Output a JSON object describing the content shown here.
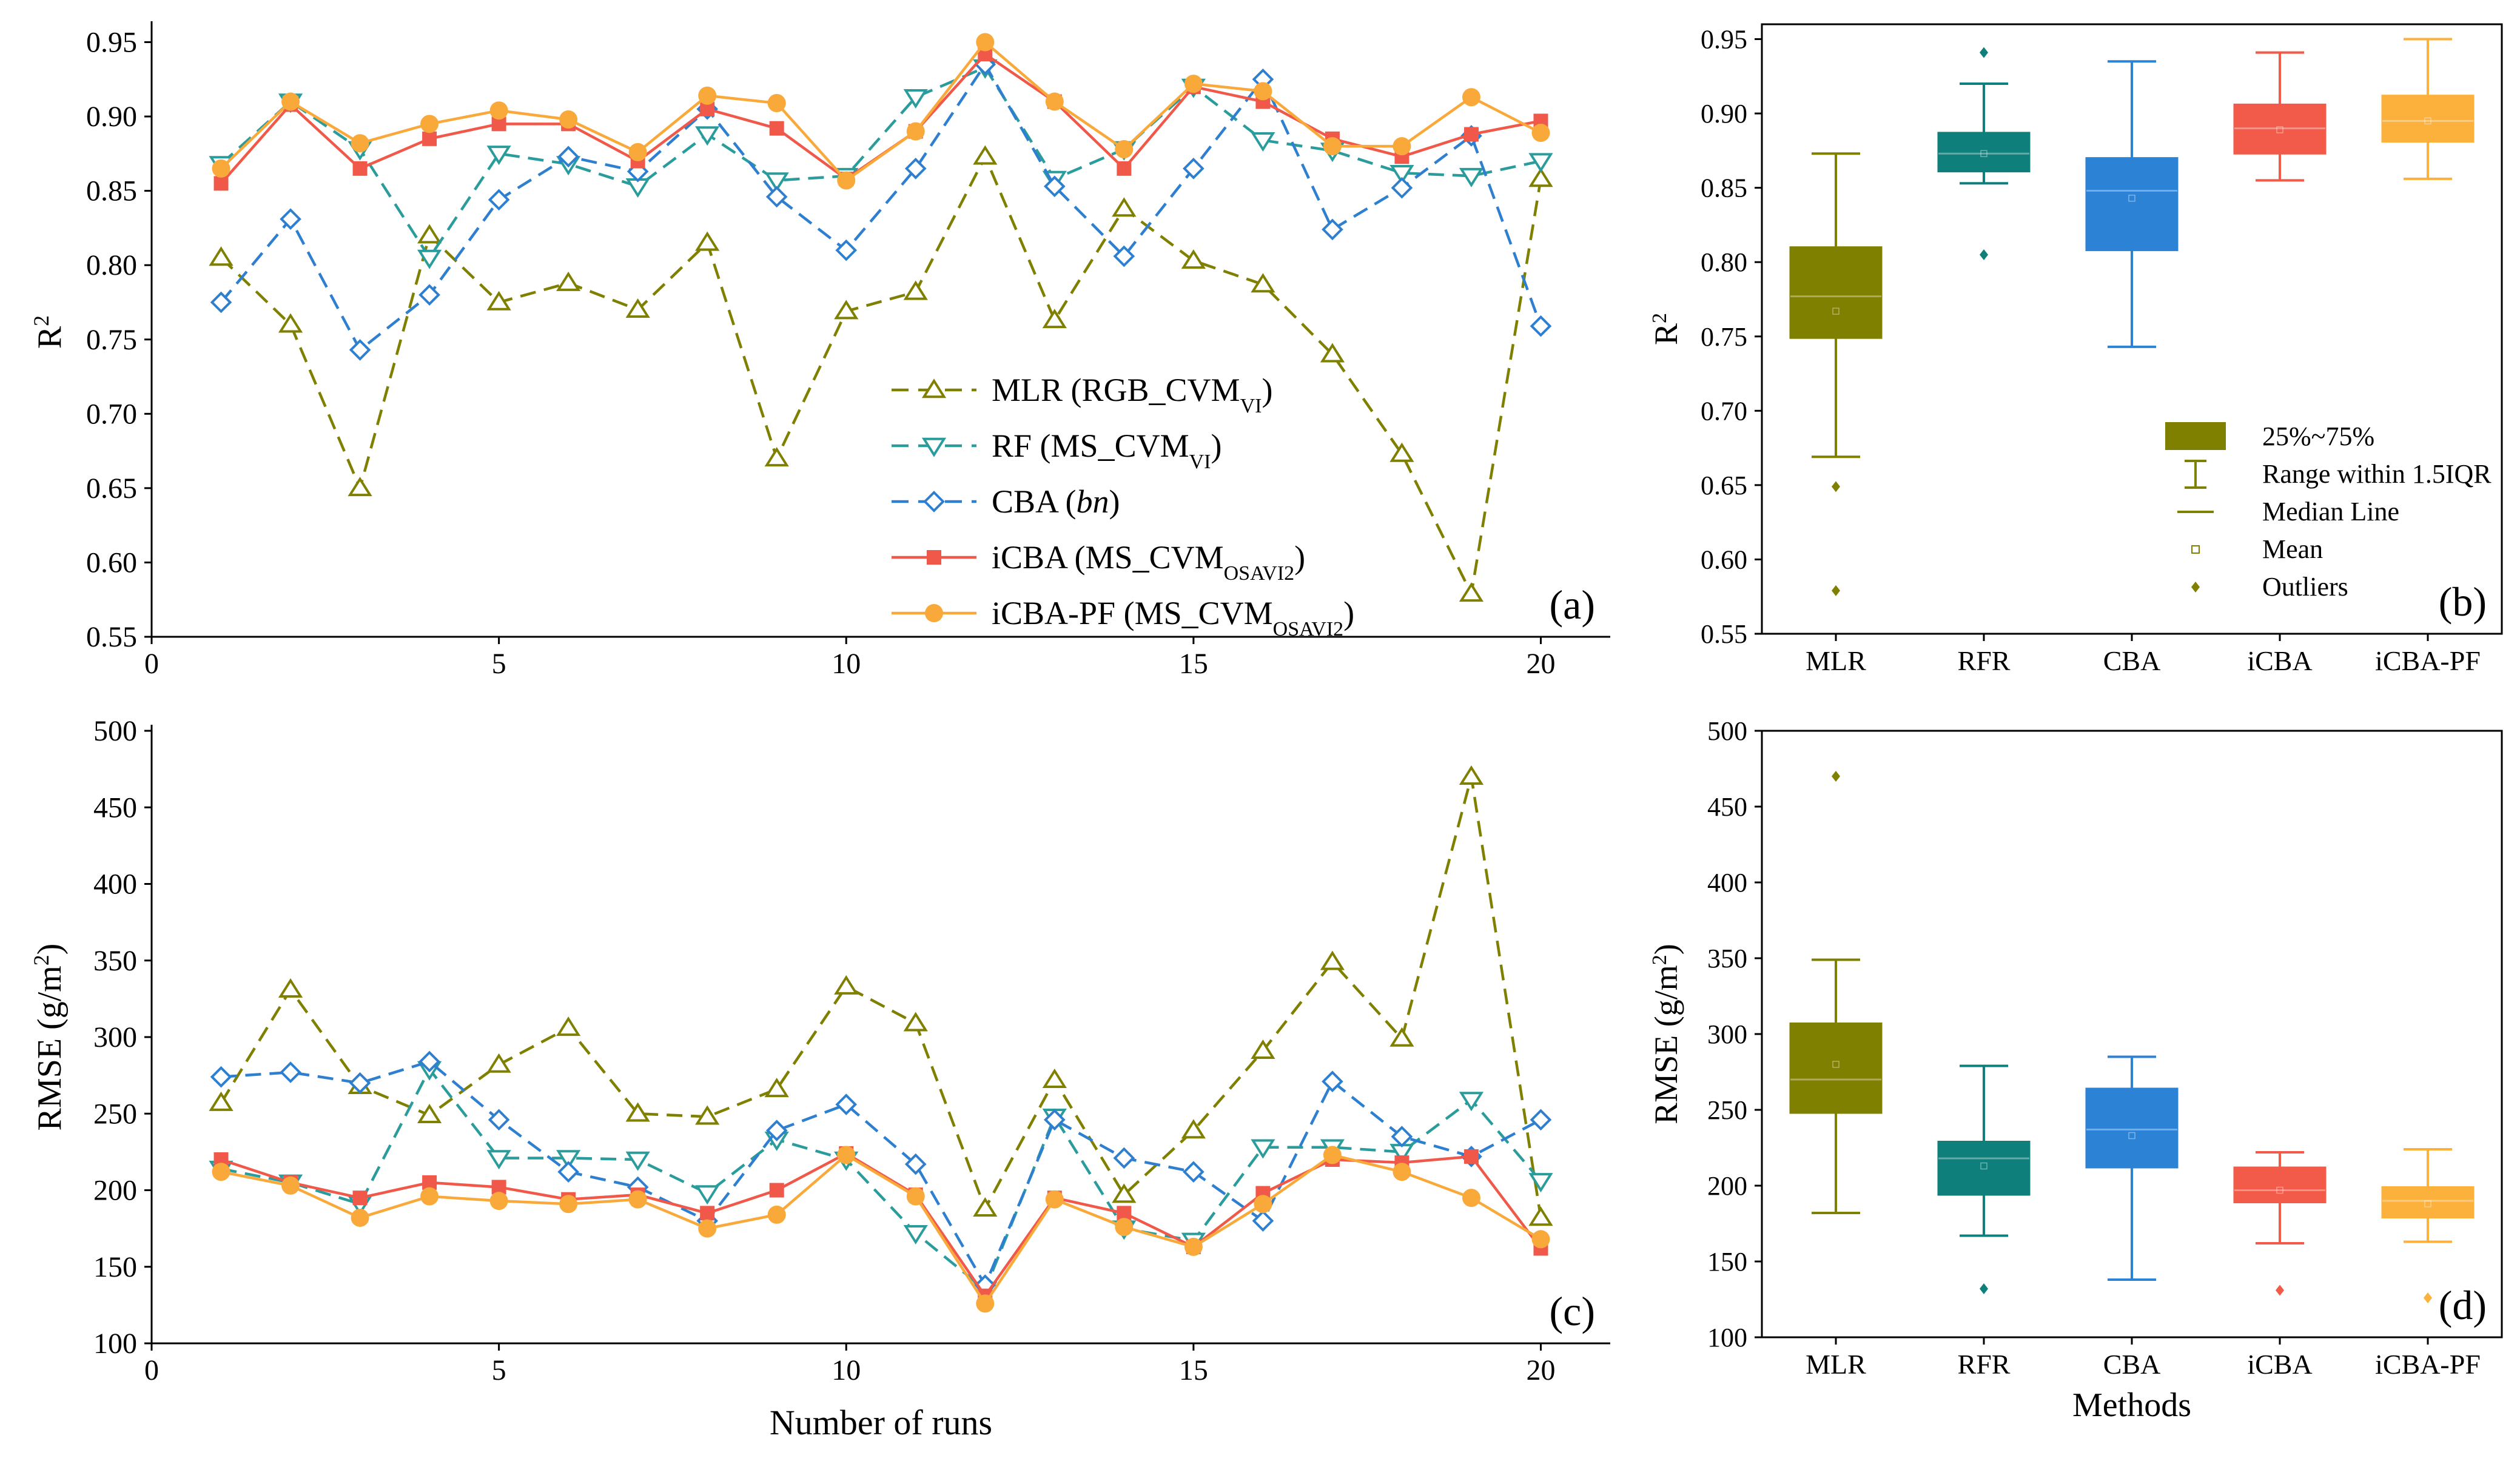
{
  "figure": {
    "panel_letters": [
      "(a)",
      "(b)",
      "(c)",
      "(d)"
    ],
    "line_x_label": "Number of runs",
    "box_x_label": "Methods",
    "x_ticks": [
      "0",
      "5",
      "10",
      "15",
      "20"
    ]
  },
  "colors": {
    "mlr": "#7F7F00",
    "rf": "#2B9C9C",
    "cba": "#2E7FD0",
    "icba": "#F0594A",
    "icbapf": "#F9A93A",
    "box_rfr": "#0E7F7A",
    "box_cba": "#2C82D4",
    "box_icba": "#F25A49",
    "box_icbapf": "#FBB13B"
  },
  "legend_a": [
    {
      "key": "mlr",
      "text": "MLR (RGB_CVM",
      "sub": "VI",
      "after": ")"
    },
    {
      "key": "rf",
      "text": "RF (MS_CVM",
      "sub": "VI",
      "after": ")"
    },
    {
      "key": "cba",
      "text": "CBA (",
      "italic": "bn",
      "after": ")"
    },
    {
      "key": "icba",
      "text": "iCBA (MS_CVM",
      "sub": "OSAVI2",
      "after": ")"
    },
    {
      "key": "icbapf",
      "text": "iCBA-PF (MS_CVM",
      "sub": "OSAVI2",
      "after": ")"
    }
  ],
  "legend_b": [
    "25%~75%",
    "Range within 1.5IQR",
    "Median Line",
    "Mean",
    "Outliers"
  ],
  "chart_data": [
    {
      "panel": "(a)",
      "type": "line",
      "xlabel": "",
      "ylabel": "R",
      "ylabel_sup": "2",
      "xlim": [
        0,
        21
      ],
      "ylim": [
        0.55,
        0.96
      ],
      "x_ticks": [
        0,
        5,
        10,
        15,
        20
      ],
      "y_ticks": [
        "0.55",
        "0.60",
        "0.65",
        "0.70",
        "0.75",
        "0.80",
        "0.85",
        "0.90",
        "0.95"
      ],
      "x": [
        1,
        2,
        3,
        4,
        5,
        6,
        7,
        8,
        9,
        10,
        11,
        12,
        13,
        14,
        15,
        16,
        17,
        18,
        19,
        20
      ],
      "series": [
        {
          "key": "mlr",
          "name": "MLR (RGB_CVMVI)",
          "values": [
            0.805,
            0.76,
            0.65,
            0.82,
            0.775,
            0.788,
            0.77,
            0.815,
            0.67,
            0.769,
            0.782,
            0.873,
            0.763,
            0.838,
            0.803,
            0.787,
            0.74,
            0.673,
            0.579,
            0.858
          ]
        },
        {
          "key": "rf",
          "name": "RF (MS_CVMVI)",
          "values": [
            0.868,
            0.91,
            0.878,
            0.805,
            0.875,
            0.868,
            0.853,
            0.888,
            0.857,
            0.86,
            0.913,
            0.933,
            0.858,
            0.878,
            0.92,
            0.884,
            0.877,
            0.862,
            0.86,
            0.87
          ]
        },
        {
          "key": "cba",
          "name": "CBA (bn)",
          "values": [
            0.775,
            0.831,
            0.743,
            0.78,
            0.844,
            0.873,
            0.863,
            0.905,
            0.846,
            0.81,
            0.865,
            0.935,
            0.853,
            0.806,
            0.865,
            0.925,
            0.824,
            0.852,
            0.887,
            0.759
          ]
        },
        {
          "key": "icba",
          "name": "iCBA (MS_CVMOSAVI2)",
          "values": [
            0.855,
            0.908,
            0.865,
            0.885,
            0.895,
            0.895,
            0.87,
            0.905,
            0.892,
            0.858,
            0.89,
            0.942,
            0.91,
            0.865,
            0.92,
            0.91,
            0.885,
            0.873,
            0.888,
            0.897
          ]
        },
        {
          "key": "icbapf",
          "name": "iCBA-PF (MS_CVMOSAVI2)",
          "values": [
            0.865,
            0.91,
            0.882,
            0.895,
            0.904,
            0.898,
            0.876,
            0.914,
            0.909,
            0.857,
            0.89,
            0.95,
            0.91,
            0.878,
            0.922,
            0.917,
            0.88,
            0.88,
            0.913,
            0.889
          ]
        }
      ]
    },
    {
      "panel": "(b)",
      "type": "box",
      "xlabel": "",
      "ylabel": "R",
      "ylabel_sup": "2",
      "ylim": [
        0.55,
        0.96
      ],
      "y_ticks": [
        "0.55",
        "0.60",
        "0.65",
        "0.70",
        "0.75",
        "0.80",
        "0.85",
        "0.90",
        "0.95"
      ],
      "categories": [
        "MLR",
        "RFR",
        "CBA",
        "iCBA",
        "iCBA-PF"
      ],
      "boxes": [
        {
          "key": "mlr",
          "q1": 0.749,
          "median": 0.777,
          "q3": 0.81,
          "mean": 0.767,
          "whisker_low": 0.669,
          "whisker_high": 0.873,
          "outliers": [
            0.649,
            0.579
          ]
        },
        {
          "key": "rfr",
          "q1": 0.861,
          "median": 0.873,
          "q3": 0.887,
          "mean": 0.873,
          "whisker_low": 0.853,
          "whisker_high": 0.92,
          "outliers": [
            0.941,
            0.805
          ]
        },
        {
          "key": "cba",
          "q1": 0.808,
          "median": 0.848,
          "q3": 0.87,
          "mean": 0.843,
          "whisker_low": 0.743,
          "whisker_high": 0.935,
          "outliers": []
        },
        {
          "key": "icba",
          "q1": 0.873,
          "median": 0.89,
          "q3": 0.906,
          "mean": 0.889,
          "whisker_low": 0.855,
          "whisker_high": 0.941,
          "outliers": []
        },
        {
          "key": "icbapf",
          "q1": 0.881,
          "median": 0.895,
          "q3": 0.912,
          "mean": 0.895,
          "whisker_low": 0.856,
          "whisker_high": 0.95,
          "outliers": []
        }
      ]
    },
    {
      "panel": "(c)",
      "type": "line",
      "xlabel": "Number of runs",
      "ylabel": "RMSE (g/m",
      "ylabel_sup": "2",
      "ylabel_after": ")",
      "xlim": [
        0,
        21
      ],
      "ylim": [
        100,
        500
      ],
      "x_ticks": [
        0,
        5,
        10,
        15,
        20
      ],
      "y_ticks": [
        "100",
        "150",
        "200",
        "250",
        "300",
        "350",
        "400",
        "450",
        "500"
      ],
      "x": [
        1,
        2,
        3,
        4,
        5,
        6,
        7,
        8,
        9,
        10,
        11,
        12,
        13,
        14,
        15,
        16,
        17,
        18,
        19,
        20
      ],
      "series": [
        {
          "key": "mlr",
          "values": [
            257,
            331,
            268,
            249,
            282,
            306,
            250,
            248,
            266,
            333,
            309,
            188,
            272,
            197,
            239,
            291,
            349,
            299,
            470,
            182
          ]
        },
        {
          "key": "rf",
          "values": [
            214,
            205,
            191,
            279,
            221,
            221,
            220,
            198,
            233,
            220,
            172,
            135,
            248,
            175,
            167,
            228,
            228,
            225,
            259,
            206
          ]
        },
        {
          "key": "cba",
          "values": [
            274,
            277,
            270,
            284,
            246,
            212,
            202,
            180,
            239,
            256,
            217,
            138,
            246,
            221,
            212,
            180,
            271,
            235,
            222,
            246
          ]
        },
        {
          "key": "icba",
          "values": [
            220,
            205,
            195,
            205,
            202,
            194,
            197,
            185,
            200,
            224,
            197,
            131,
            195,
            185,
            163,
            198,
            220,
            218,
            222,
            162
          ]
        },
        {
          "key": "icbapf",
          "values": [
            212,
            203,
            182,
            196,
            193,
            191,
            194,
            175,
            184,
            223,
            196,
            126,
            194,
            176,
            163,
            191,
            223,
            212,
            195,
            168
          ]
        }
      ]
    },
    {
      "panel": "(d)",
      "type": "box",
      "xlabel": "Methods",
      "ylabel": "RMSE (g/m",
      "ylabel_sup": "2",
      "ylabel_after": ")",
      "ylim": [
        100,
        500
      ],
      "y_ticks": [
        "100",
        "150",
        "200",
        "250",
        "300",
        "350",
        "400",
        "450",
        "500"
      ],
      "categories": [
        "MLR",
        "RFR",
        "CBA",
        "iCBA",
        "iCBA-PF"
      ],
      "boxes": [
        {
          "key": "mlr",
          "q1": 248,
          "median": 270,
          "q3": 307,
          "mean": 280,
          "whisker_low": 182,
          "whisker_high": 349,
          "outliers": [
            470
          ]
        },
        {
          "key": "rfr",
          "q1": 194,
          "median": 218,
          "q3": 229,
          "mean": 213,
          "whisker_low": 167,
          "whisker_high": 279,
          "outliers": [
            132
          ]
        },
        {
          "key": "cba",
          "q1": 212,
          "median": 237,
          "q3": 264,
          "mean": 233,
          "whisker_low": 138,
          "whisker_high": 285,
          "outliers": []
        },
        {
          "key": "icba",
          "q1": 189,
          "median": 197,
          "q3": 212,
          "mean": 197,
          "whisker_low": 162,
          "whisker_high": 222,
          "outliers": [
            131
          ]
        },
        {
          "key": "icbapf",
          "q1": 179,
          "median": 190,
          "q3": 199,
          "mean": 188,
          "whisker_low": 163,
          "whisker_high": 224,
          "outliers": [
            126
          ]
        }
      ]
    }
  ]
}
